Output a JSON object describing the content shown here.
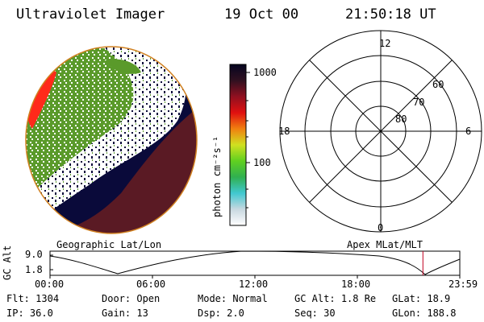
{
  "header": {
    "title": "Ultraviolet Imager",
    "date": "19 Oct 00",
    "time": "21:50:18 UT"
  },
  "colorbar": {
    "unit_label": "photon cm⁻²s⁻¹",
    "ticks": [
      "1000",
      "100"
    ]
  },
  "polar": {
    "mlt_labels": [
      "12",
      "18",
      "6",
      "0"
    ],
    "lat_labels": [
      "60",
      "70",
      "80"
    ]
  },
  "panels": {
    "left_caption": "Geographic Lat/Lon",
    "right_caption": "Apex MLat/MLT"
  },
  "altplot": {
    "ylabel": "GC Alt",
    "yticks": [
      "9.0",
      "1.8"
    ],
    "xticks": [
      "00:00",
      "06:00",
      "12:00",
      "18:00",
      "23:59"
    ],
    "marker_time_hours": 21.84,
    "marker_color": "#c00020"
  },
  "footer": {
    "row1": [
      {
        "key": "Flt:",
        "val": "1304"
      },
      {
        "key": "Door:",
        "val": "Open"
      },
      {
        "key": "Mode:",
        "val": "Normal"
      },
      {
        "key": "GC Alt:",
        "val": "1.8 Re"
      },
      {
        "key": "GLat:",
        "val": "18.9"
      }
    ],
    "row2": [
      {
        "key": "IP:",
        "val": "36.0"
      },
      {
        "key": "Gain:",
        "val": "13"
      },
      {
        "key": "Dsp:",
        "val": "2.0"
      },
      {
        "key": "Seq:",
        "val": "30"
      },
      {
        "key": "GLon:",
        "val": "188.8"
      }
    ]
  },
  "colors": {
    "dark_navy": "#0a0a3a",
    "maroon": "#5a1a24",
    "green": "#5a9a2a",
    "red": "#ff2a1a",
    "limb": "#d08020"
  }
}
